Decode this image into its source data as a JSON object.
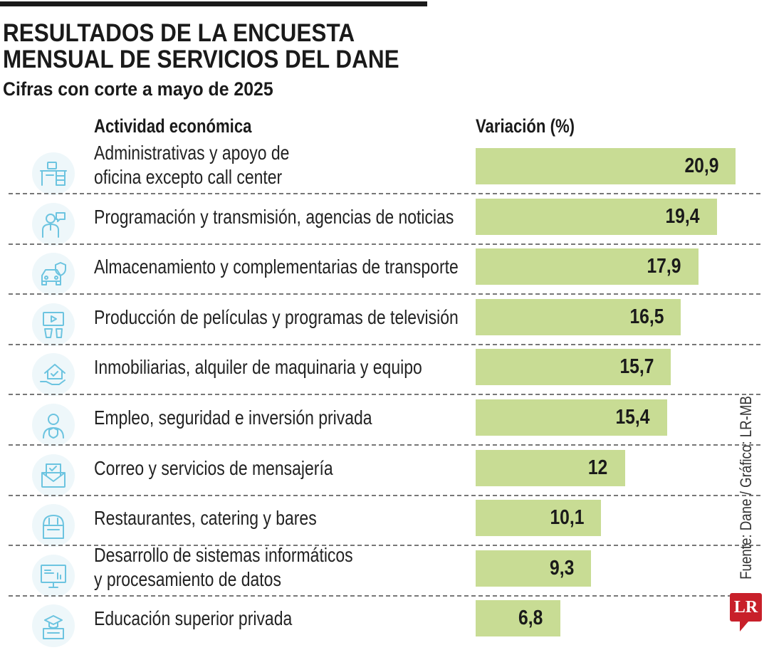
{
  "chart_data": {
    "type": "bar",
    "orientation": "horizontal",
    "title": "RESULTADOS DE LA ENCUESTA MENSUAL DE SERVICIOS DEL DANE",
    "title_lines": [
      "RESULTADOS DE LA ENCUESTA",
      "MENSUAL DE SERVICIOS DEL DANE"
    ],
    "subtitle": "Cifras con corte a mayo de 2025",
    "category_header": "Actividad económica",
    "value_header": "Variación (%)",
    "categories": [
      [
        "Administrativas y apoyo de",
        "oficina excepto call center"
      ],
      [
        "Programación y transmisión, agencias de noticias"
      ],
      [
        "Almacenamiento y complementarias de transporte"
      ],
      [
        "Producción de películas y programas de televisión"
      ],
      [
        "Inmobiliarias, alquiler de maquinaria y equipo"
      ],
      [
        "Empleo, seguridad e inversión privada"
      ],
      [
        "Correo y servicios de mensajería"
      ],
      [
        "Restaurantes, catering y bares"
      ],
      [
        "Desarrollo de sistemas informáticos",
        "y procesamiento de datos"
      ],
      [
        "Educación superior privada"
      ]
    ],
    "values": [
      20.9,
      19.4,
      17.9,
      16.5,
      15.7,
      15.4,
      12,
      10.1,
      9.3,
      6.8
    ],
    "value_labels": [
      "20,9",
      "19,4",
      "17,9",
      "16,5",
      "15,7",
      "15,4",
      "12",
      "10,1",
      "9,3",
      "6,8"
    ],
    "icons": [
      "office-desk-icon",
      "news-presenter-icon",
      "transport-shield-car-icon",
      "film-popcorn-icon",
      "house-hand-icon",
      "person-shield-icon",
      "mail-envelope-icon",
      "restaurant-icon",
      "computer-monitor-icon",
      "graduation-certificate-icon"
    ],
    "xlim": [
      0,
      20.9
    ],
    "grid": false,
    "colors": {
      "bar": "#c8dc94",
      "icon": "#6cc4e0",
      "icon_bg": "#eef7fa",
      "logo": "#c8202a"
    }
  },
  "source": "Fuente: Dane / Gráfico: LR-MB",
  "logo": "LR"
}
